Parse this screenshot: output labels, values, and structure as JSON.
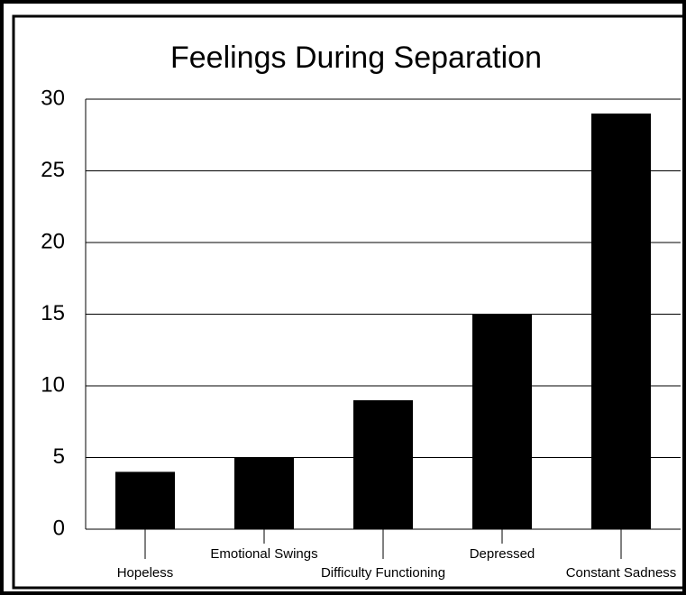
{
  "chart_data": {
    "type": "bar",
    "title": "Feelings During Separation",
    "categories": [
      "Hopeless",
      "Emotional Swings",
      "Difficulty Functioning",
      "Depressed",
      "Constant Sadness"
    ],
    "values": [
      4,
      5,
      9,
      15,
      29
    ],
    "color": "#000000",
    "ylim": [
      0,
      30
    ],
    "yticks": [
      0,
      5,
      10,
      15,
      20,
      25,
      30
    ],
    "grid": true
  }
}
